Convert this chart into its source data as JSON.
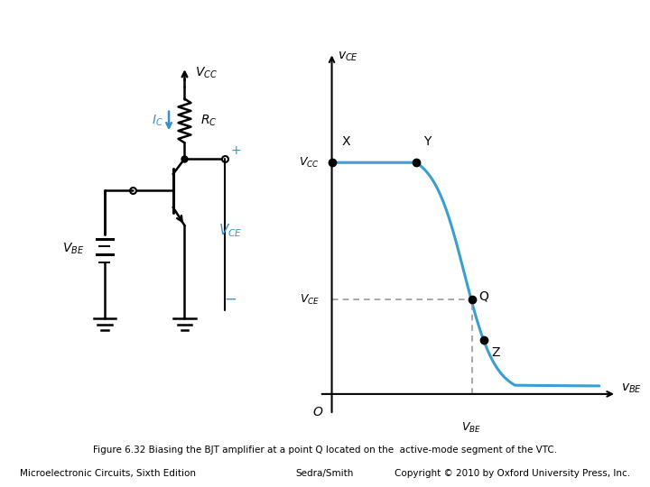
{
  "title": "Figure 6.32 Biasing the BJT amplifier at a point Q located on the  active-mode segment of the VTC.",
  "footer_left": "Microelectronic Circuits, Sixth Edition",
  "footer_center": "Sedra/Smith",
  "footer_right": "Copyright © 2010 by Oxford University Press, Inc.",
  "blue_color": "#3A8FC4",
  "black_color": "#000000",
  "curve_color": "#3A9FD0",
  "dashed_color": "#999999",
  "bg_color": "#ffffff"
}
